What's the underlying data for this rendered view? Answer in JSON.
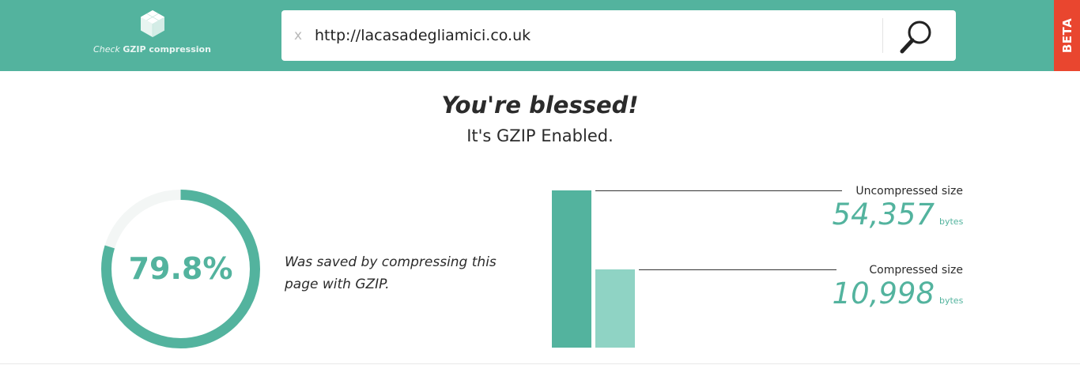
{
  "header": {
    "logo_text_pre": "Check",
    "logo_text_bold": "GZIP compression",
    "logo_icon": "hexagon-cube-icon",
    "clear_label": "x",
    "url_value": "http://lacasadegliamici.co.uk",
    "search_icon": "magnifier-icon",
    "beta_label": "BETA"
  },
  "result": {
    "headline": "You're blessed!",
    "subline": "It's GZIP Enabled."
  },
  "savings": {
    "percent_label": "79.8%",
    "percent_value": 79.8,
    "description": "Was saved by compressing this page with GZIP."
  },
  "sizes": {
    "uncompressed": {
      "label": "Uncompressed size",
      "value_text": "54,357",
      "value": 54357,
      "unit": "bytes"
    },
    "compressed": {
      "label": "Compressed size",
      "value_text": "10,998",
      "value": 10998,
      "unit": "bytes"
    }
  },
  "colors": {
    "brand": "#53b39e",
    "brand_light": "#8fd3c4",
    "beta": "#e9462f",
    "ring_track": "#f4f7f6"
  }
}
